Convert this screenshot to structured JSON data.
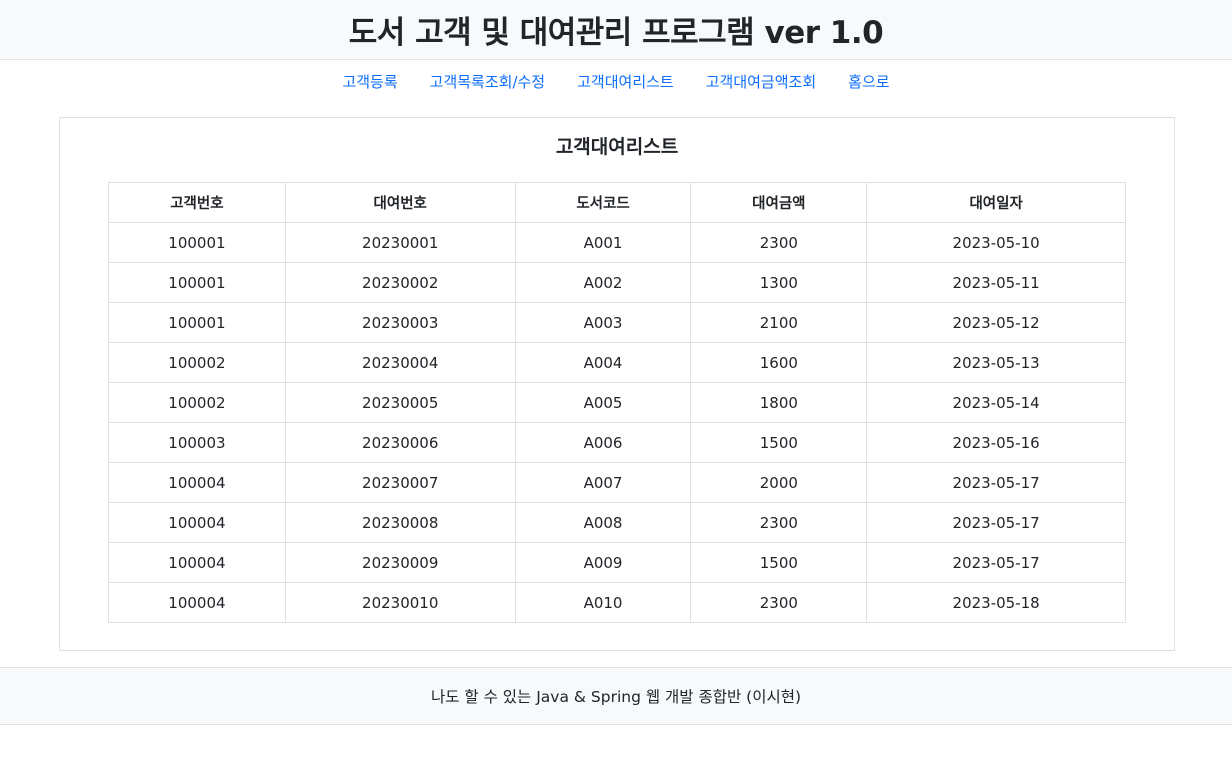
{
  "header": {
    "title": "도서 고객 및 대여관리 프로그램 ver 1.0"
  },
  "nav": {
    "items": [
      {
        "label": "고객등록"
      },
      {
        "label": "고객목록조회/수정"
      },
      {
        "label": "고객대여리스트"
      },
      {
        "label": "고객대여금액조회"
      },
      {
        "label": "홈으로"
      }
    ]
  },
  "main": {
    "title": "고객대여리스트",
    "table": {
      "columns": [
        "고객번호",
        "대여번호",
        "도서코드",
        "대여금액",
        "대여일자"
      ],
      "rows": [
        [
          "100001",
          "20230001",
          "A001",
          "2300",
          "2023-05-10"
        ],
        [
          "100001",
          "20230002",
          "A002",
          "1300",
          "2023-05-11"
        ],
        [
          "100001",
          "20230003",
          "A003",
          "2100",
          "2023-05-12"
        ],
        [
          "100002",
          "20230004",
          "A004",
          "1600",
          "2023-05-13"
        ],
        [
          "100002",
          "20230005",
          "A005",
          "1800",
          "2023-05-14"
        ],
        [
          "100003",
          "20230006",
          "A006",
          "1500",
          "2023-05-16"
        ],
        [
          "100004",
          "20230007",
          "A007",
          "2000",
          "2023-05-17"
        ],
        [
          "100004",
          "20230008",
          "A008",
          "2300",
          "2023-05-17"
        ],
        [
          "100004",
          "20230009",
          "A009",
          "1500",
          "2023-05-17"
        ],
        [
          "100004",
          "20230010",
          "A010",
          "2300",
          "2023-05-18"
        ]
      ]
    }
  },
  "footer": {
    "text": "나도 할 수 있는 Java & Spring 웹 개발 종합반 (이시현)"
  },
  "colors": {
    "link": "#0d6efd",
    "header_bg": "#f8f9fa",
    "border": "#dee2e6",
    "text": "#212529"
  }
}
